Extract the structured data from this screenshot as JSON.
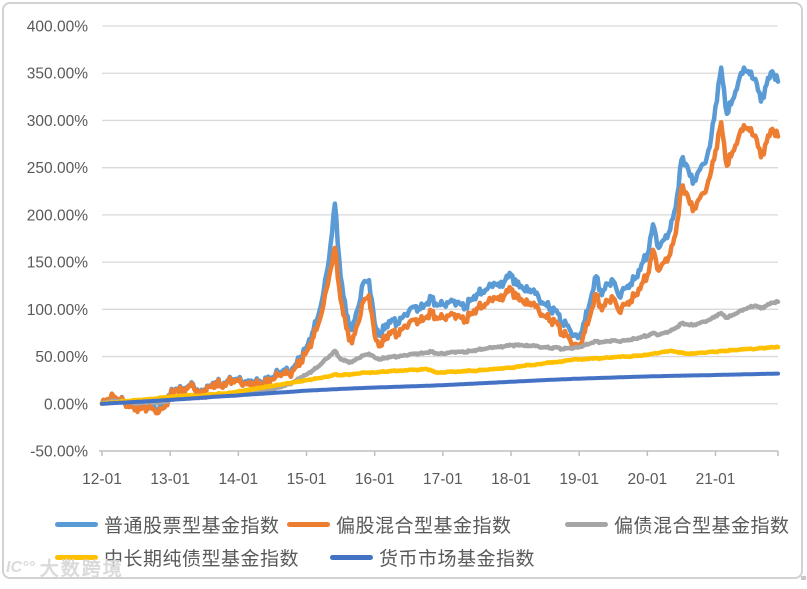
{
  "watermark": {
    "logo": "IC°°",
    "text": "大数跨境"
  },
  "chart_data": {
    "type": "line",
    "title": "",
    "xlabel": "",
    "ylabel": "",
    "grid": "horizontal",
    "legend_position": "bottom-left",
    "ylim": [
      -50,
      400
    ],
    "y_tick_step": 50,
    "y_ticks": [
      "400.00%",
      "350.00%",
      "300.00%",
      "250.00%",
      "200.00%",
      "150.00%",
      "100.00%",
      "50.00%",
      "0.00%",
      "-50.00%"
    ],
    "x_ticks": [
      "12-01",
      "13-01",
      "14-01",
      "15-01",
      "16-01",
      "17-01",
      "18-01",
      "19-01",
      "20-01",
      "21-01"
    ],
    "x_unit": "months from 2012-01 to 2021-12",
    "series": [
      {
        "name": "普通股票型基金指数",
        "color": "#5B9BD5",
        "values": [
          0,
          4,
          7,
          5,
          2,
          -1,
          -3,
          -4,
          -2,
          -4,
          -6,
          -2,
          9,
          16,
          13,
          17,
          21,
          11,
          15,
          19,
          23,
          20,
          24,
          26,
          26,
          23,
          22,
          23,
          22,
          24,
          28,
          33,
          36,
          34,
          41,
          50,
          60,
          75,
          92,
          118,
          155,
          212,
          135,
          95,
          78,
          100,
          128,
          131,
          85,
          72,
          84,
          89,
          86,
          92,
          98,
          103,
          100,
          105,
          111,
          104,
          105,
          107,
          109,
          106,
          103,
          111,
          116,
          119,
          123,
          128,
          124,
          131,
          137,
          126,
          123,
          119,
          121,
          110,
          106,
          101,
          99,
          86,
          83,
          72,
          70,
          88,
          110,
          135,
          115,
          127,
          130,
          114,
          122,
          127,
          134,
          148,
          158,
          190,
          165,
          174,
          184,
          208,
          258,
          252,
          233,
          246,
          254,
          272,
          315,
          356,
          307,
          322,
          340,
          356,
          349,
          344,
          320,
          338,
          352,
          341
        ]
      },
      {
        "name": "偏股混合型基金指数",
        "color": "#ED7D31",
        "values": [
          0,
          5,
          8,
          5,
          1,
          -2,
          -4,
          -5,
          -3,
          -6,
          -9,
          -4,
          8,
          15,
          12,
          16,
          20,
          10,
          14,
          18,
          22,
          19,
          23,
          25,
          24,
          21,
          20,
          21,
          20,
          22,
          26,
          30,
          33,
          31,
          38,
          46,
          55,
          68,
          83,
          105,
          135,
          165,
          110,
          80,
          64,
          84,
          108,
          115,
          72,
          61,
          72,
          77,
          74,
          80,
          85,
          89,
          87,
          91,
          96,
          90,
          91,
          93,
          95,
          92,
          89,
          96,
          101,
          104,
          108,
          113,
          110,
          116,
          122,
          112,
          109,
          105,
          107,
          97,
          93,
          89,
          87,
          75,
          72,
          62,
          60,
          76,
          95,
          116,
          99,
          109,
          112,
          98,
          105,
          109,
          116,
          127,
          136,
          163,
          141,
          150,
          158,
          180,
          228,
          222,
          204,
          216,
          223,
          240,
          268,
          298,
          252,
          267,
          281,
          295,
          289,
          284,
          261,
          277,
          291,
          283
        ]
      },
      {
        "name": "偏债混合型基金指数",
        "color": "#A5A5A5",
        "values": [
          0,
          2,
          3,
          3,
          2,
          2,
          1,
          1,
          2,
          1,
          1,
          2,
          4,
          6,
          6,
          7,
          8,
          6,
          7,
          8,
          9,
          9,
          10,
          11,
          11,
          12,
          12,
          13,
          13,
          14,
          15,
          17,
          19,
          21,
          24,
          28,
          31,
          35,
          39,
          45,
          50,
          56,
          47,
          45,
          44,
          48,
          51,
          53,
          49,
          47,
          49,
          50,
          50,
          51,
          52,
          53,
          53,
          54,
          55,
          53,
          53,
          54,
          55,
          55,
          55,
          56,
          57,
          58,
          59,
          60,
          60,
          61,
          62,
          62,
          62,
          61,
          62,
          60,
          60,
          59,
          60,
          58,
          59,
          59,
          60,
          62,
          64,
          66,
          65,
          66,
          67,
          66,
          67,
          68,
          69,
          71,
          72,
          75,
          73,
          75,
          77,
          80,
          85,
          84,
          83,
          85,
          87,
          89,
          93,
          96,
          91,
          94,
          97,
          100,
          102,
          104,
          101,
          104,
          107,
          108
        ]
      },
      {
        "name": "中长期纯债型基金指数",
        "color": "#FFC000",
        "values": [
          0,
          1,
          1,
          2,
          3,
          3,
          4,
          4,
          5,
          5,
          6,
          7,
          7,
          8,
          8,
          9,
          9,
          8,
          9,
          10,
          10,
          11,
          11,
          12,
          13,
          14,
          15,
          16,
          17,
          18,
          19,
          20,
          21,
          22,
          23,
          24,
          25,
          26,
          27,
          28,
          29,
          31,
          30,
          31,
          31,
          32,
          33,
          33,
          33,
          34,
          34,
          35,
          35,
          35,
          36,
          36,
          36,
          37,
          35,
          33,
          33,
          34,
          34,
          34,
          35,
          35,
          35,
          36,
          36,
          37,
          37,
          38,
          38,
          39,
          40,
          41,
          41,
          42,
          43,
          44,
          44,
          45,
          46,
          47,
          47,
          47,
          48,
          48,
          48,
          49,
          49,
          50,
          50,
          50,
          51,
          51,
          52,
          53,
          54,
          55,
          56,
          55,
          54,
          53,
          53,
          54,
          54,
          55,
          55,
          56,
          56,
          57,
          57,
          58,
          58,
          58,
          59,
          59,
          60,
          60
        ]
      },
      {
        "name": "货币市场基金指数",
        "color": "#4472C4",
        "values": [
          0,
          0.3,
          0.7,
          1,
          1.3,
          1.7,
          2,
          2.3,
          2.7,
          3,
          3.4,
          3.8,
          4.1,
          4.5,
          4.9,
          5.3,
          5.7,
          6.1,
          6.6,
          7,
          7.5,
          7.8,
          8.2,
          8.5,
          8.9,
          9.4,
          9.8,
          10.2,
          10.6,
          11,
          11.4,
          11.8,
          12.2,
          12.6,
          13,
          13.5,
          13.9,
          14.2,
          14.5,
          14.8,
          15.1,
          15.4,
          15.7,
          16,
          16.2,
          16.5,
          16.7,
          17,
          17.2,
          17.4,
          17.6,
          17.8,
          18,
          18.2,
          18.4,
          18.6,
          18.8,
          19,
          19.2,
          19.5,
          19.7,
          20,
          20.3,
          20.6,
          20.9,
          21.2,
          21.5,
          21.8,
          22.1,
          22.4,
          22.7,
          23,
          23.3,
          23.6,
          23.9,
          24.2,
          24.5,
          24.8,
          25.1,
          25.4,
          25.6,
          25.9,
          26.1,
          26.4,
          26.6,
          26.8,
          27,
          27.2,
          27.4,
          27.6,
          27.8,
          28,
          28.2,
          28.4,
          28.6,
          28.8,
          28.9,
          29.1,
          29.2,
          29.4,
          29.5,
          29.6,
          29.8,
          29.9,
          30,
          30.1,
          30.2,
          30.3,
          30.5,
          30.6,
          30.8,
          30.9,
          31,
          31.2,
          31.3,
          31.4,
          31.6,
          31.7,
          31.8,
          32
        ]
      }
    ],
    "legend_rows": [
      [
        0,
        1,
        2
      ],
      [
        3,
        4
      ]
    ],
    "colors": {
      "axis_text": "#595959",
      "gridline": "#D9D9D9",
      "axis_line": "#BFBFBF"
    }
  }
}
